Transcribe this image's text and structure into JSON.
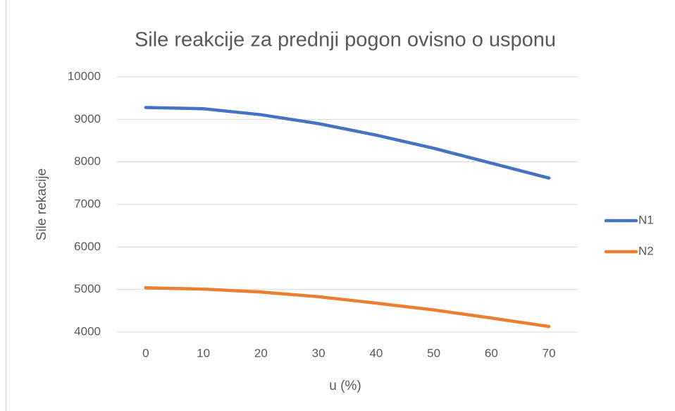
{
  "chart_data": {
    "type": "line",
    "title": "Sile reakcije za prednji pogon ovisno o usponu",
    "x_label": "u (%)",
    "y_label": "Sile rekacije",
    "categories": [
      0,
      10,
      20,
      30,
      40,
      50,
      60,
      70
    ],
    "series": [
      {
        "name": "N1",
        "color": "#4472c4",
        "values": [
          9280,
          9250,
          9110,
          8900,
          8630,
          8320,
          7970,
          7620
        ]
      },
      {
        "name": "N2",
        "color": "#ed7d31",
        "values": [
          5040,
          5010,
          4940,
          4830,
          4680,
          4520,
          4330,
          4130
        ]
      }
    ],
    "ylim": [
      4000,
      10000
    ],
    "yticks": [
      4000,
      5000,
      6000,
      7000,
      8000,
      9000,
      10000
    ],
    "grid": true,
    "legend": "right"
  }
}
